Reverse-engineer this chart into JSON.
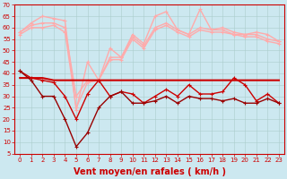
{
  "x": [
    0,
    1,
    2,
    3,
    4,
    5,
    6,
    7,
    8,
    9,
    10,
    11,
    12,
    13,
    14,
    15,
    16,
    17,
    18,
    19,
    20,
    21,
    22,
    23
  ],
  "series": [
    {
      "name": "rafales_max",
      "color": "#ffaaaa",
      "linewidth": 1.0,
      "markersize": 2.5,
      "marker": "+",
      "values": [
        58,
        62,
        65,
        64,
        63,
        24,
        45,
        37,
        51,
        47,
        57,
        53,
        65,
        67,
        59,
        57,
        68,
        59,
        60,
        58,
        57,
        58,
        57,
        54
      ]
    },
    {
      "name": "rafales_2",
      "color": "#ffaaaa",
      "linewidth": 1.0,
      "markersize": 2.5,
      "marker": "+",
      "values": [
        58,
        61,
        62,
        62,
        60,
        30,
        37,
        37,
        47,
        47,
        56,
        52,
        60,
        62,
        59,
        57,
        60,
        59,
        59,
        57,
        57,
        57,
        55,
        54
      ]
    },
    {
      "name": "rafales_3",
      "color": "#ffaaaa",
      "linewidth": 1.0,
      "markersize": 2.5,
      "marker": "+",
      "values": [
        57,
        60,
        60,
        61,
        58,
        25,
        36,
        37,
        46,
        46,
        55,
        51,
        59,
        61,
        58,
        56,
        59,
        58,
        58,
        57,
        56,
        56,
        54,
        53
      ]
    },
    {
      "name": "vent_flat",
      "color": "#cc0000",
      "linewidth": 1.5,
      "markersize": 0,
      "marker": "None",
      "values": [
        38,
        38,
        38,
        37,
        37,
        37,
        37,
        37,
        37,
        37,
        37,
        37,
        37,
        37,
        37,
        37,
        37,
        37,
        37,
        37,
        37,
        37,
        37,
        37
      ]
    },
    {
      "name": "vent_moyen_markers",
      "color": "#cc0000",
      "linewidth": 1.0,
      "markersize": 2.5,
      "marker": "+",
      "values": [
        41,
        38,
        37,
        36,
        30,
        20,
        31,
        37,
        30,
        32,
        31,
        27,
        30,
        33,
        30,
        35,
        31,
        31,
        32,
        38,
        35,
        28,
        31,
        27
      ]
    },
    {
      "name": "vent_min",
      "color": "#990000",
      "linewidth": 1.0,
      "markersize": 2.5,
      "marker": "+",
      "values": [
        41,
        37,
        30,
        30,
        20,
        8,
        14,
        25,
        30,
        32,
        27,
        27,
        28,
        30,
        27,
        30,
        29,
        29,
        28,
        29,
        27,
        27,
        29,
        27
      ]
    }
  ],
  "xlabel": "Vent moyen/en rafales ( km/h )",
  "ylim": [
    5,
    70
  ],
  "xlim": [
    -0.5,
    23.5
  ],
  "yticks": [
    5,
    10,
    15,
    20,
    25,
    30,
    35,
    40,
    45,
    50,
    55,
    60,
    65,
    70
  ],
  "xticks": [
    0,
    1,
    2,
    3,
    4,
    5,
    6,
    7,
    8,
    9,
    10,
    11,
    12,
    13,
    14,
    15,
    16,
    17,
    18,
    19,
    20,
    21,
    22,
    23
  ],
  "bg_color": "#cce8f0",
  "grid_color": "#aacccc",
  "xlabel_color": "#cc0000",
  "xlabel_fontsize": 7,
  "tick_fontsize": 5
}
